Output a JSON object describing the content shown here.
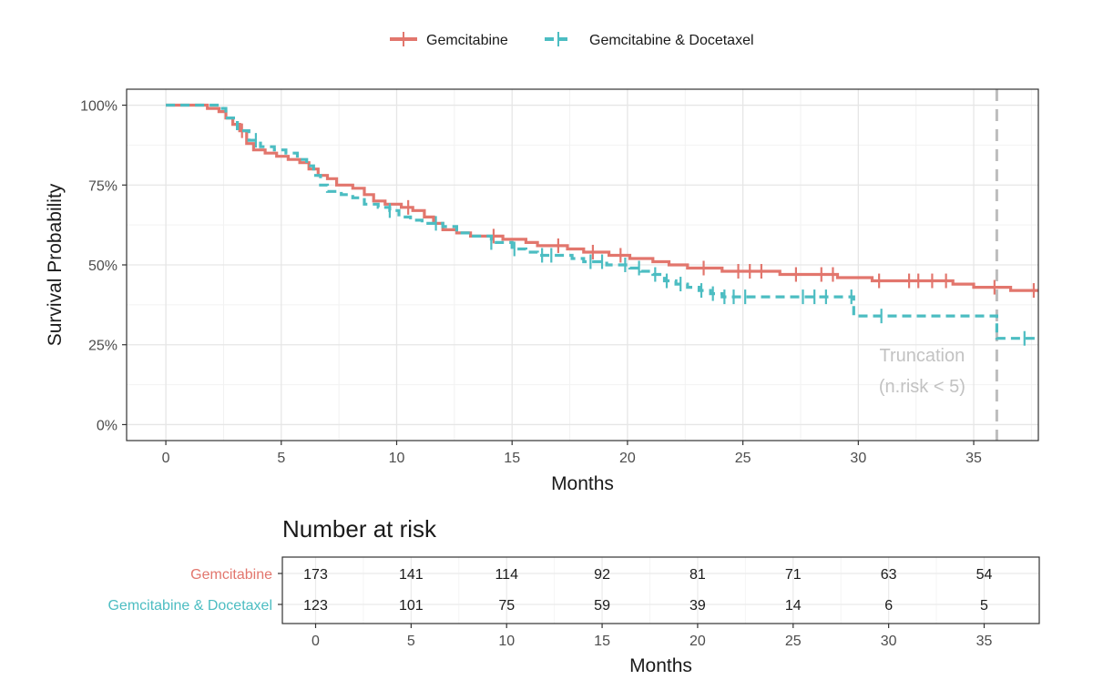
{
  "chart_data": {
    "type": "line",
    "subtype": "kaplan-meier survival curve",
    "xlabel": "Months",
    "ylabel": "Survival Probability",
    "xlim": [
      -1.7,
      37.8
    ],
    "ylim": [
      -0.05,
      1.05
    ],
    "x_ticks": [
      0,
      5,
      10,
      15,
      20,
      25,
      30,
      35
    ],
    "y_ticks": [
      0,
      0.25,
      0.5,
      0.75,
      1.0
    ],
    "y_tick_labels": [
      "0%",
      "25%",
      "50%",
      "75%",
      "100%"
    ],
    "grid": true,
    "legend_position": "top",
    "series": [
      {
        "name": "Gemcitabine",
        "color": "#e2766d",
        "line_style": "solid",
        "steps": [
          [
            0,
            1.0
          ],
          [
            1.8,
            0.99
          ],
          [
            2.3,
            0.98
          ],
          [
            2.6,
            0.96
          ],
          [
            2.9,
            0.94
          ],
          [
            3.2,
            0.92
          ],
          [
            3.5,
            0.88
          ],
          [
            3.8,
            0.86
          ],
          [
            4.3,
            0.85
          ],
          [
            4.8,
            0.84
          ],
          [
            5.3,
            0.83
          ],
          [
            5.8,
            0.82
          ],
          [
            6.2,
            0.8
          ],
          [
            6.6,
            0.78
          ],
          [
            7.0,
            0.77
          ],
          [
            7.4,
            0.75
          ],
          [
            8.1,
            0.74
          ],
          [
            8.6,
            0.72
          ],
          [
            9.0,
            0.7
          ],
          [
            9.5,
            0.69
          ],
          [
            10.2,
            0.68
          ],
          [
            10.7,
            0.67
          ],
          [
            11.2,
            0.65
          ],
          [
            11.6,
            0.63
          ],
          [
            12.0,
            0.61
          ],
          [
            12.6,
            0.6
          ],
          [
            13.2,
            0.59
          ],
          [
            14.6,
            0.58
          ],
          [
            15.6,
            0.57
          ],
          [
            16.1,
            0.56
          ],
          [
            17.4,
            0.55
          ],
          [
            18.1,
            0.54
          ],
          [
            19.2,
            0.53
          ],
          [
            20.1,
            0.52
          ],
          [
            21.1,
            0.51
          ],
          [
            21.8,
            0.5
          ],
          [
            22.6,
            0.49
          ],
          [
            24.1,
            0.48
          ],
          [
            26.6,
            0.47
          ],
          [
            29.1,
            0.46
          ],
          [
            30.6,
            0.45
          ],
          [
            34.1,
            0.44
          ],
          [
            35.0,
            0.43
          ],
          [
            36.6,
            0.42
          ],
          [
            37.8,
            0.42
          ]
        ],
        "censor_times": [
          3.3,
          10.5,
          14.2,
          17.0,
          18.5,
          19.7,
          23.3,
          24.8,
          25.3,
          25.8,
          27.3,
          28.4,
          28.9,
          30.9,
          32.2,
          32.6,
          33.2,
          33.8,
          35.9,
          37.6
        ]
      },
      {
        "name": "Gemcitabine & Docetaxel",
        "color": "#4cbdc2",
        "line_style": "dashed",
        "steps": [
          [
            0,
            1.0
          ],
          [
            2.3,
            0.99
          ],
          [
            2.6,
            0.96
          ],
          [
            3.1,
            0.92
          ],
          [
            3.6,
            0.89
          ],
          [
            4.1,
            0.87
          ],
          [
            4.7,
            0.86
          ],
          [
            5.2,
            0.85
          ],
          [
            5.7,
            0.83
          ],
          [
            6.1,
            0.81
          ],
          [
            6.4,
            0.78
          ],
          [
            6.7,
            0.75
          ],
          [
            7.0,
            0.73
          ],
          [
            7.6,
            0.72
          ],
          [
            8.1,
            0.71
          ],
          [
            8.6,
            0.69
          ],
          [
            9.2,
            0.68
          ],
          [
            9.7,
            0.67
          ],
          [
            10.1,
            0.65
          ],
          [
            10.6,
            0.64
          ],
          [
            11.1,
            0.63
          ],
          [
            12.0,
            0.62
          ],
          [
            12.6,
            0.6
          ],
          [
            13.2,
            0.59
          ],
          [
            14.1,
            0.57
          ],
          [
            15.0,
            0.55
          ],
          [
            15.6,
            0.54
          ],
          [
            16.1,
            0.53
          ],
          [
            17.6,
            0.52
          ],
          [
            18.1,
            0.51
          ],
          [
            19.1,
            0.5
          ],
          [
            20.1,
            0.49
          ],
          [
            20.6,
            0.48
          ],
          [
            21.1,
            0.47
          ],
          [
            21.6,
            0.45
          ],
          [
            22.1,
            0.44
          ],
          [
            22.6,
            0.43
          ],
          [
            23.1,
            0.42
          ],
          [
            23.6,
            0.41
          ],
          [
            24.1,
            0.4
          ],
          [
            29.8,
            0.34
          ],
          [
            36.0,
            0.27
          ],
          [
            37.8,
            0.27
          ]
        ],
        "censor_times": [
          3.9,
          9.7,
          11.7,
          14.1,
          15.1,
          16.3,
          16.7,
          18.4,
          18.9,
          19.9,
          20.5,
          21.2,
          21.7,
          22.3,
          23.2,
          23.7,
          24.2,
          24.6,
          25.1,
          27.6,
          28.1,
          28.6,
          29.7,
          31.0,
          37.2
        ]
      }
    ],
    "annotation": {
      "text_line1": "Truncation",
      "text_line2": "(n.risk < 5)",
      "x": 36
    },
    "risk_table": {
      "title": "Number at risk",
      "xlabel": "Months",
      "times": [
        0,
        5,
        10,
        15,
        20,
        25,
        30,
        35
      ],
      "rows": [
        {
          "name": "Gemcitabine",
          "color": "#e2766d",
          "counts": [
            "173",
            "141",
            "114",
            "92",
            "81",
            "71",
            "63",
            "54"
          ]
        },
        {
          "name": "Gemcitabine & Docetaxel",
          "color": "#4cbdc2",
          "counts": [
            "123",
            "101",
            "75",
            "59",
            "39",
            "14",
            "6",
            "5"
          ]
        }
      ]
    }
  }
}
